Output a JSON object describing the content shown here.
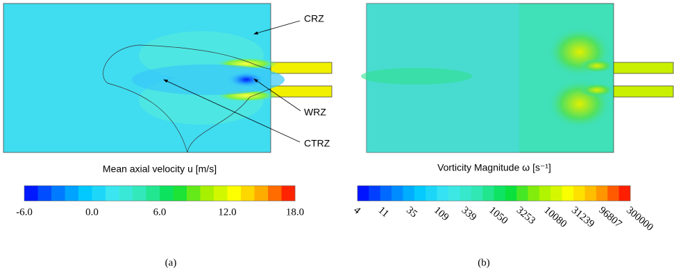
{
  "chart_data": [
    {
      "type": "contour",
      "title": "Mean axial velocity u [m/s]",
      "annotations": [
        "CRZ",
        "WRZ",
        "CTRZ"
      ],
      "colorbar": {
        "lim": [
          -6,
          18
        ],
        "levels": 20,
        "log": false,
        "ticks": [
          {
            "value": -6,
            "label": "-6.0"
          },
          {
            "value": 0,
            "label": "0.0"
          },
          {
            "value": 6,
            "label": "6.0"
          },
          {
            "value": 12,
            "label": "12.0"
          },
          {
            "value": 18,
            "label": "18.0"
          }
        ],
        "colors": [
          "#0000ff",
          "#0070ff",
          "#00c8ff",
          "#40e8f0",
          "#30e8b0",
          "#00e040",
          "#a0f000",
          "#ffff00",
          "#ffa000",
          "#ff0000"
        ]
      },
      "caption": "(a)"
    },
    {
      "type": "contour",
      "title": "Vorticity Magnitude ω [s⁻¹]",
      "colorbar": {
        "lim": [
          4,
          300000
        ],
        "levels": 24,
        "log": true,
        "ticks": [
          4,
          11,
          35,
          109,
          339,
          1050,
          3253,
          10080,
          31239,
          96807,
          300000
        ],
        "colors": [
          "#0000ff",
          "#0070ff",
          "#00c8ff",
          "#40e8f0",
          "#30e8b0",
          "#00e040",
          "#a0f000",
          "#ffff00",
          "#ffa000",
          "#ff0000"
        ]
      },
      "caption": "(b)"
    }
  ]
}
